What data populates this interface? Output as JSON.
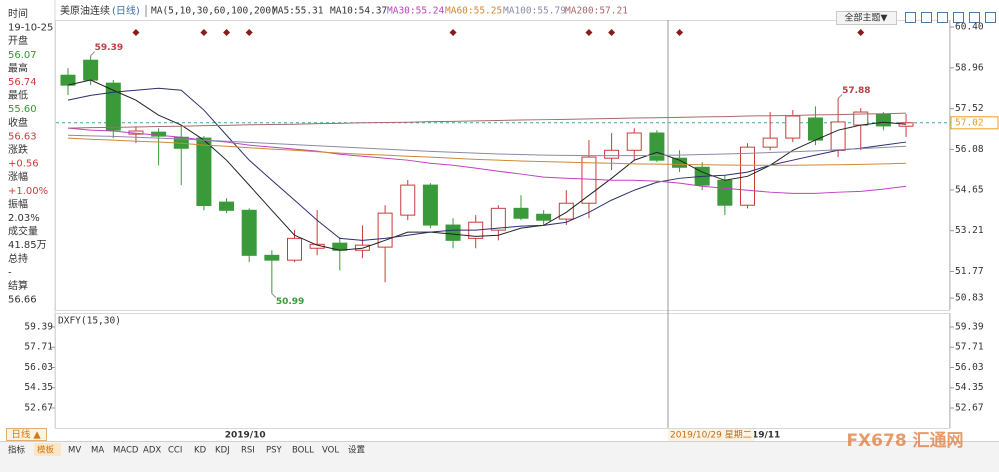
{
  "chart_data": [
    {
      "type": "candlestick",
      "title": "美原油连续",
      "subtitle": "(日线)",
      "indicator": "MA(5,10,30,60,100,200)",
      "categories": [
        null,
        null,
        null,
        null,
        null,
        null,
        null,
        null,
        "2019/10",
        null,
        null,
        null,
        null,
        null,
        null,
        null,
        null,
        null,
        null,
        null,
        null,
        null,
        null,
        null,
        null,
        null,
        null,
        null,
        null,
        null,
        null,
        "19/11",
        null,
        null,
        null,
        null,
        null,
        null
      ],
      "open": [
        58.7,
        59.23,
        58.42,
        56.62,
        56.69,
        56.51,
        56.48,
        54.22,
        53.93,
        52.34,
        52.17,
        52.59,
        52.77,
        52.52,
        52.63,
        53.76,
        54.82,
        53.41,
        52.94,
        53.23,
        54.0,
        53.79,
        53.62,
        54.18,
        55.77,
        56.05,
        56.66,
        55.77,
        55.45,
        54.99,
        54.11,
        56.16,
        56.48,
        57.19,
        56.05,
        56.94,
        57.33,
        56.9
      ],
      "high": [
        58.95,
        59.39,
        58.53,
        56.9,
        56.83,
        56.94,
        56.55,
        54.36,
        54.0,
        52.52,
        53.23,
        53.94,
        52.98,
        53.4,
        54.11,
        55.0,
        54.89,
        53.65,
        53.76,
        54.11,
        54.46,
        53.93,
        54.64,
        56.41,
        56.66,
        56.83,
        56.76,
        56.05,
        55.63,
        55.17,
        56.3,
        57.4,
        57.47,
        57.6,
        57.88,
        57.54,
        57.4,
        57.33
      ],
      "low": [
        58.0,
        58.35,
        56.48,
        56.3,
        55.52,
        54.82,
        53.93,
        53.83,
        52.1,
        50.99,
        52.1,
        52.34,
        51.81,
        52.24,
        51.39,
        53.58,
        53.3,
        52.59,
        52.59,
        52.87,
        53.58,
        53.41,
        53.41,
        53.65,
        55.35,
        55.7,
        55.63,
        55.28,
        54.64,
        53.76,
        54.0,
        56.05,
        56.34,
        56.23,
        55.81,
        56.05,
        56.76,
        56.52
      ],
      "close": [
        58.35,
        58.53,
        56.76,
        56.73,
        56.55,
        56.12,
        54.1,
        53.93,
        52.34,
        52.17,
        52.94,
        52.73,
        52.52,
        52.7,
        53.83,
        54.82,
        53.41,
        52.87,
        53.51,
        54.0,
        53.65,
        53.58,
        54.18,
        55.81,
        56.05,
        56.66,
        55.7,
        55.45,
        54.82,
        54.11,
        56.16,
        56.48,
        57.26,
        56.41,
        57.05,
        57.4,
        56.91,
        57.02
      ],
      "up_color": "#cc3b3b",
      "down_color": "#3a9a3a",
      "series": [
        {
          "name": "MA5:55.31",
          "color": "#222222",
          "values": [
            58.35,
            58.53,
            58.17,
            57.82,
            57.29,
            56.94,
            56.41,
            55.7,
            54.82,
            53.93,
            53.05,
            52.7,
            52.52,
            52.59,
            52.87,
            53.16,
            53.16,
            53.09,
            53.01,
            53.05,
            53.3,
            53.4,
            53.86,
            54.46,
            55.06,
            55.7,
            55.98,
            55.7,
            55.28,
            54.99,
            55.13,
            55.52,
            56.05,
            56.41,
            56.76,
            56.94,
            57.04,
            56.97
          ]
        },
        {
          "name": "MA10:54.37",
          "color": "#2b2f6e",
          "values": [
            57.82,
            57.99,
            58.1,
            58.17,
            58.24,
            58.17,
            57.47,
            56.58,
            55.7,
            54.99,
            54.29,
            53.58,
            52.94,
            52.87,
            52.94,
            53.05,
            53.16,
            53.23,
            53.23,
            53.3,
            53.37,
            53.4,
            53.51,
            53.86,
            54.29,
            54.64,
            54.92,
            55.06,
            55.13,
            55.17,
            55.28,
            55.52,
            55.7,
            55.88,
            56.05,
            56.12,
            56.23,
            56.34
          ]
        },
        {
          "name": "MA30:55.24",
          "color": "#c040c0",
          "values": [
            56.83,
            56.76,
            56.73,
            56.65,
            56.58,
            56.51,
            56.41,
            56.34,
            56.23,
            56.16,
            56.09,
            56.02,
            55.91,
            55.84,
            55.77,
            55.7,
            55.59,
            55.52,
            55.42,
            55.31,
            55.21,
            55.1,
            55.06,
            55.03,
            54.99,
            54.99,
            54.96,
            54.89,
            54.78,
            54.71,
            54.64,
            54.57,
            54.53,
            54.53,
            54.57,
            54.6,
            54.68,
            54.78
          ]
        },
        {
          "name": "MA60:55.25",
          "color": "#cc8a33",
          "values": [
            56.48,
            56.44,
            56.41,
            56.37,
            56.34,
            56.3,
            56.23,
            56.19,
            56.14,
            56.09,
            56.05,
            56.0,
            55.95,
            55.91,
            55.88,
            55.84,
            55.81,
            55.77,
            55.73,
            55.7,
            55.67,
            55.65,
            55.63,
            55.61,
            55.59,
            55.57,
            55.56,
            55.55,
            55.54,
            55.53,
            55.52,
            55.52,
            55.52,
            55.53,
            55.54,
            55.55,
            55.57,
            55.59
          ]
        },
        {
          "name": "MA100:55.79",
          "color": "#8a8aa8",
          "values": [
            56.58,
            56.56,
            56.54,
            56.51,
            56.48,
            56.45,
            56.41,
            56.37,
            56.33,
            56.29,
            56.25,
            56.21,
            56.17,
            56.13,
            56.09,
            56.05,
            56.01,
            55.98,
            55.95,
            55.92,
            55.9,
            55.88,
            55.87,
            55.86,
            55.86,
            55.86,
            55.87,
            55.88,
            55.9,
            55.92,
            55.94,
            55.97,
            56.0,
            56.03,
            56.07,
            56.11,
            56.15,
            56.19
          ]
        },
        {
          "name": "MA200:57.21",
          "color": "#a86a6a",
          "values": [
            56.83,
            56.85,
            56.86,
            56.87,
            56.89,
            56.9,
            56.92,
            56.93,
            56.95,
            56.96,
            56.97,
            56.99,
            57.0,
            57.02,
            57.03,
            57.04,
            57.06,
            57.07,
            57.09,
            57.1,
            57.12,
            57.13,
            57.14,
            57.16,
            57.17,
            57.19,
            57.2,
            57.21,
            57.23,
            57.24,
            57.26,
            57.27,
            57.28,
            57.3,
            57.31,
            57.33,
            57.34,
            57.36
          ]
        }
      ],
      "current_price": 57.02,
      "current_price_color": "#e8a020",
      "cursor_label": "2019/10/29 星期二",
      "ylim": [
        50.41,
        60.65
      ],
      "yticks": [
        {
          "value": 60.4,
          "label": "60.40"
        },
        58.96,
        57.52,
        56.08,
        54.65,
        53.21,
        51.77,
        50.83
      ]
    },
    {
      "type": "indicator",
      "title": "DXFY(15,30)",
      "ylim": [
        51.01,
        60.55
      ],
      "yticks": [
        59.39,
        57.71,
        56.03,
        54.35,
        52.67
      ]
    }
  ],
  "info_panel": [
    {
      "label": "时间",
      "value": "19-10-25",
      "color": "#333333"
    },
    {
      "label": "开盘",
      "value": "56.07",
      "color": "#2e9a2e"
    },
    {
      "label": "最高",
      "value": "56.74",
      "color": "#d23a3a"
    },
    {
      "label": "最低",
      "value": "55.60",
      "color": "#2e9a2e"
    },
    {
      "label": "收盘",
      "value": "56.63",
      "color": "#d23a3a"
    },
    {
      "label": "涨跌",
      "value": "+0.56",
      "color": "#d23a3a"
    },
    {
      "label": "涨幅",
      "value": "+1.00%",
      "color": "#d23a3a"
    },
    {
      "label": "振幅",
      "value": "2.03%",
      "color": "#333333"
    },
    {
      "label": "成交量",
      "value": "41.85万",
      "color": "#333333"
    },
    {
      "label": "总持",
      "value": "-",
      "color": "#333333"
    },
    {
      "label": "结算",
      "value": "56.66",
      "color": "#333333"
    }
  ],
  "toolbar": {
    "theme_button": "全部主题▼",
    "period_button": "日线 ▲",
    "tabs": [
      "指标",
      "模板",
      "MV",
      "MA",
      "MACD",
      "ADX",
      "CCI",
      "KD",
      "KDJ",
      "RSI",
      "PSY",
      "BOLL",
      "VOL",
      "设置"
    ],
    "selected_tab": 1
  },
  "watermark": "FX678 汇通网"
}
